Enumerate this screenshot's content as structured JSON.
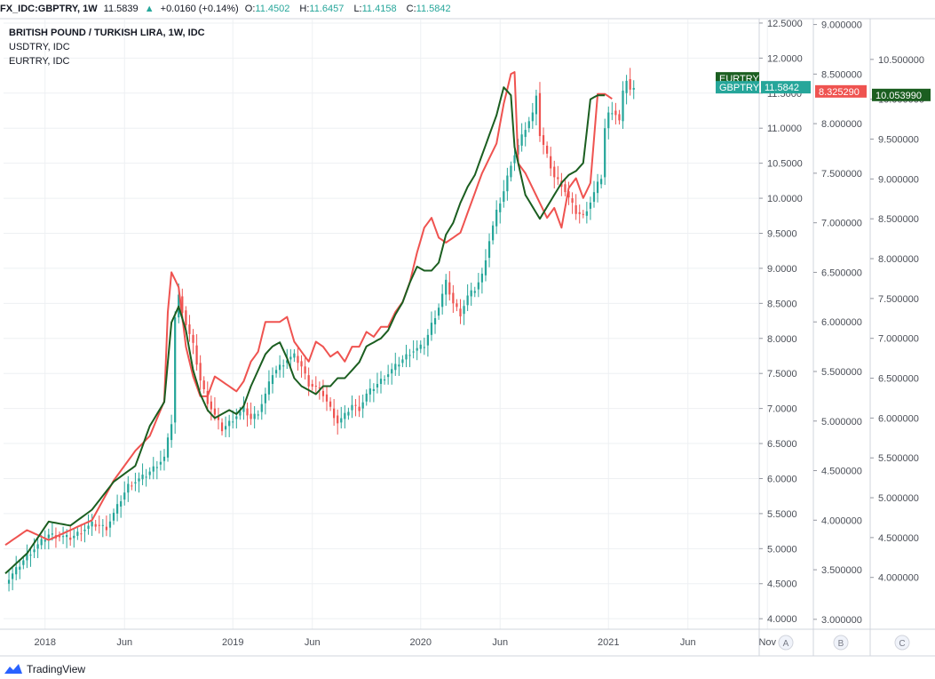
{
  "header": {
    "symbol": "FX_IDC:GBPTRY, 1W",
    "last": "11.5839",
    "change_arrow": "▲",
    "change": "+0.0160 (+0.14%)",
    "o_label": "O:",
    "o": "11.4502",
    "h_label": "H:",
    "h": "11.6457",
    "l_label": "L:",
    "l": "11.4158",
    "c_label": "C:",
    "c": "11.5842"
  },
  "legend": {
    "main": "BRITISH POUND / TURKISH LIRA, 1W, IDC",
    "s1": "USDTRY, IDC",
    "s2": "EURTRY, IDC"
  },
  "brand": "TradingView",
  "colors": {
    "up": "#26a69a",
    "down": "#ef5350",
    "usdtry": "#ef5350",
    "eurtry": "#1b5e20",
    "grid": "#eef0f3",
    "axis_text": "#4a4e57"
  },
  "chart_data": {
    "type": "line",
    "x_tick_labels": [
      "2018",
      "Jun",
      "2019",
      "Jun",
      "2020",
      "Jun",
      "2021",
      "Jun",
      "Nov"
    ],
    "price_scales": [
      {
        "id": "A",
        "series": "GBPTRY",
        "ylim": [
          3.85,
          12.55
        ],
        "ticks": [
          "12.5000",
          "12.0000",
          "11.5000",
          "11.0000",
          "10.5000",
          "10.0000",
          "9.5000",
          "9.0000",
          "8.5000",
          "8.0000",
          "7.5000",
          "7.0000",
          "6.5000",
          "6.0000",
          "5.5000",
          "5.0000",
          "4.5000",
          "4.0000"
        ]
      },
      {
        "id": "B",
        "series": "USDTRY",
        "ylim": [
          2.9,
          9.05
        ],
        "ticks": [
          "9.000000",
          "8.500000",
          "8.000000",
          "7.500000",
          "7.000000",
          "6.500000",
          "6.000000",
          "5.500000",
          "5.000000",
          "4.500000",
          "4.000000",
          "3.500000",
          "3.000000"
        ]
      },
      {
        "id": "C",
        "series": "EURTRY",
        "ylim": [
          3.35,
          11.0
        ],
        "ticks": [
          "10.500000",
          "10.000000",
          "9.500000",
          "9.000000",
          "8.500000",
          "8.000000",
          "7.500000",
          "7.000000",
          "6.500000",
          "6.000000",
          "5.500000",
          "5.000000",
          "4.500000",
          "4.000000"
        ]
      }
    ],
    "scale_labels": [
      "A",
      "B",
      "C"
    ],
    "last_value_labels": {
      "GBPTRY": "11.5842",
      "USDTRY": "8.325290",
      "EURTRY": "10.053990",
      "GBPTRY_tag": "GBPTRY",
      "EURTRY_tag": "EURTRY"
    },
    "gbptry_anchors": [
      [
        0,
        4.5
      ],
      [
        6,
        4.9
      ],
      [
        12,
        5.2
      ],
      [
        18,
        5.15
      ],
      [
        24,
        5.35
      ],
      [
        28,
        5.3
      ],
      [
        34,
        5.9
      ],
      [
        39,
        6.05
      ],
      [
        44,
        6.3
      ],
      [
        46,
        6.8
      ],
      [
        47,
        8.3
      ],
      [
        48,
        8.6
      ],
      [
        50,
        8.2
      ],
      [
        52,
        7.9
      ],
      [
        54,
        7.4
      ],
      [
        56,
        7.1
      ],
      [
        58,
        6.9
      ],
      [
        60,
        6.7
      ],
      [
        62,
        6.8
      ],
      [
        64,
        6.9
      ],
      [
        66,
        7.0
      ],
      [
        68,
        6.85
      ],
      [
        70,
        6.95
      ],
      [
        72,
        7.2
      ],
      [
        74,
        7.5
      ],
      [
        76,
        7.6
      ],
      [
        78,
        7.7
      ],
      [
        80,
        7.75
      ],
      [
        82,
        7.6
      ],
      [
        84,
        7.35
      ],
      [
        86,
        7.3
      ],
      [
        88,
        7.2
      ],
      [
        90,
        7.0
      ],
      [
        92,
        6.8
      ],
      [
        94,
        6.9
      ],
      [
        96,
        7.05
      ],
      [
        98,
        7.0
      ],
      [
        100,
        7.2
      ],
      [
        102,
        7.3
      ],
      [
        104,
        7.4
      ],
      [
        106,
        7.5
      ],
      [
        108,
        7.6
      ],
      [
        110,
        7.7
      ],
      [
        112,
        7.8
      ],
      [
        114,
        7.85
      ],
      [
        116,
        7.9
      ],
      [
        118,
        8.2
      ],
      [
        120,
        8.45
      ],
      [
        122,
        8.8
      ],
      [
        124,
        8.5
      ],
      [
        126,
        8.35
      ],
      [
        128,
        8.6
      ],
      [
        130,
        8.7
      ],
      [
        132,
        8.9
      ],
      [
        134,
        9.4
      ],
      [
        136,
        9.8
      ],
      [
        138,
        10.1
      ],
      [
        140,
        10.5
      ],
      [
        142,
        10.75
      ],
      [
        144,
        11.0
      ],
      [
        146,
        11.2
      ],
      [
        147,
        11.5
      ],
      [
        148,
        10.9
      ],
      [
        150,
        10.6
      ],
      [
        152,
        10.3
      ],
      [
        154,
        10.2
      ],
      [
        156,
        10.0
      ],
      [
        158,
        9.8
      ],
      [
        160,
        9.75
      ],
      [
        162,
        9.95
      ],
      [
        164,
        10.2
      ],
      [
        165,
        10.3
      ],
      [
        166,
        11.0
      ],
      [
        167,
        11.2
      ],
      [
        168,
        11.25
      ],
      [
        169,
        11.2
      ],
      [
        170,
        11.1
      ],
      [
        171,
        11.5
      ],
      [
        172,
        11.7
      ],
      [
        173,
        11.55
      ],
      [
        174,
        11.55
      ]
    ],
    "usdtry_anchors": [
      [
        0,
        3.75
      ],
      [
        6,
        3.9
      ],
      [
        12,
        3.8
      ],
      [
        18,
        3.9
      ],
      [
        24,
        4.0
      ],
      [
        30,
        4.4
      ],
      [
        36,
        4.7
      ],
      [
        40,
        4.85
      ],
      [
        44,
        5.2
      ],
      [
        45,
        6.1
      ],
      [
        46,
        6.5
      ],
      [
        48,
        6.35
      ],
      [
        50,
        5.75
      ],
      [
        52,
        5.45
      ],
      [
        54,
        5.25
      ],
      [
        56,
        5.25
      ],
      [
        58,
        5.45
      ],
      [
        60,
        5.4
      ],
      [
        62,
        5.35
      ],
      [
        64,
        5.3
      ],
      [
        66,
        5.4
      ],
      [
        68,
        5.6
      ],
      [
        70,
        5.7
      ],
      [
        72,
        6.0
      ],
      [
        74,
        6.0
      ],
      [
        76,
        6.0
      ],
      [
        78,
        6.05
      ],
      [
        80,
        5.8
      ],
      [
        82,
        5.7
      ],
      [
        84,
        5.6
      ],
      [
        86,
        5.8
      ],
      [
        88,
        5.75
      ],
      [
        90,
        5.65
      ],
      [
        92,
        5.7
      ],
      [
        94,
        5.6
      ],
      [
        96,
        5.75
      ],
      [
        98,
        5.75
      ],
      [
        100,
        5.9
      ],
      [
        102,
        5.85
      ],
      [
        104,
        5.95
      ],
      [
        106,
        5.95
      ],
      [
        108,
        6.1
      ],
      [
        110,
        6.2
      ],
      [
        112,
        6.4
      ],
      [
        114,
        6.7
      ],
      [
        116,
        6.95
      ],
      [
        118,
        7.05
      ],
      [
        120,
        6.85
      ],
      [
        122,
        6.8
      ],
      [
        124,
        6.85
      ],
      [
        126,
        6.9
      ],
      [
        128,
        7.1
      ],
      [
        130,
        7.3
      ],
      [
        132,
        7.5
      ],
      [
        134,
        7.65
      ],
      [
        136,
        7.8
      ],
      [
        138,
        8.2
      ],
      [
        140,
        8.5
      ],
      [
        141,
        8.52
      ],
      [
        142,
        7.6
      ],
      [
        144,
        7.5
      ],
      [
        146,
        7.35
      ],
      [
        148,
        7.2
      ],
      [
        150,
        7.05
      ],
      [
        152,
        7.15
      ],
      [
        154,
        6.95
      ],
      [
        156,
        7.35
      ],
      [
        158,
        7.45
      ],
      [
        160,
        7.25
      ],
      [
        162,
        7.4
      ],
      [
        164,
        8.3
      ],
      [
        166,
        8.3
      ],
      [
        168,
        8.25
      ]
    ],
    "eurtry_anchors": [
      [
        0,
        4.05
      ],
      [
        6,
        4.3
      ],
      [
        12,
        4.7
      ],
      [
        18,
        4.65
      ],
      [
        24,
        4.85
      ],
      [
        30,
        5.2
      ],
      [
        36,
        5.4
      ],
      [
        40,
        5.9
      ],
      [
        44,
        6.2
      ],
      [
        46,
        7.2
      ],
      [
        48,
        7.4
      ],
      [
        50,
        7.1
      ],
      [
        52,
        6.6
      ],
      [
        54,
        6.3
      ],
      [
        56,
        6.1
      ],
      [
        58,
        6.0
      ],
      [
        60,
        6.05
      ],
      [
        62,
        6.1
      ],
      [
        64,
        6.05
      ],
      [
        66,
        6.15
      ],
      [
        68,
        6.4
      ],
      [
        70,
        6.6
      ],
      [
        72,
        6.8
      ],
      [
        74,
        6.9
      ],
      [
        76,
        6.95
      ],
      [
        78,
        6.75
      ],
      [
        80,
        6.5
      ],
      [
        82,
        6.4
      ],
      [
        84,
        6.35
      ],
      [
        86,
        6.3
      ],
      [
        88,
        6.4
      ],
      [
        90,
        6.4
      ],
      [
        92,
        6.5
      ],
      [
        94,
        6.5
      ],
      [
        96,
        6.6
      ],
      [
        98,
        6.7
      ],
      [
        100,
        6.9
      ],
      [
        102,
        6.95
      ],
      [
        104,
        7.0
      ],
      [
        106,
        7.1
      ],
      [
        108,
        7.3
      ],
      [
        110,
        7.45
      ],
      [
        112,
        7.7
      ],
      [
        114,
        7.9
      ],
      [
        116,
        7.85
      ],
      [
        118,
        7.85
      ],
      [
        120,
        7.95
      ],
      [
        122,
        8.3
      ],
      [
        124,
        8.45
      ],
      [
        126,
        8.7
      ],
      [
        128,
        8.9
      ],
      [
        130,
        9.05
      ],
      [
        132,
        9.3
      ],
      [
        134,
        9.55
      ],
      [
        136,
        9.8
      ],
      [
        138,
        10.15
      ],
      [
        140,
        10.05
      ],
      [
        141,
        9.4
      ],
      [
        142,
        9.2
      ],
      [
        144,
        8.8
      ],
      [
        146,
        8.65
      ],
      [
        148,
        8.5
      ],
      [
        150,
        8.65
      ],
      [
        152,
        8.8
      ],
      [
        154,
        8.95
      ],
      [
        156,
        9.05
      ],
      [
        158,
        9.1
      ],
      [
        160,
        9.2
      ],
      [
        162,
        10.0
      ],
      [
        164,
        10.05
      ],
      [
        166,
        10.05
      ]
    ]
  }
}
